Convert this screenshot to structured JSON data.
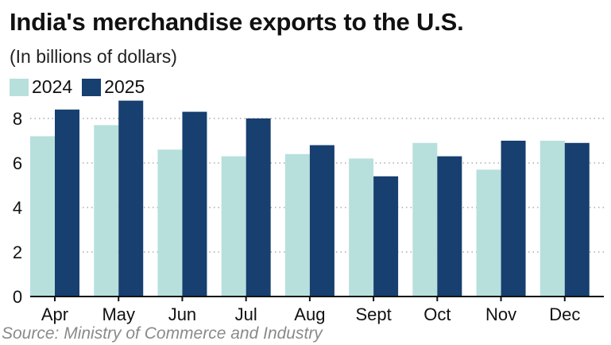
{
  "title": "India's merchandise exports to the U.S.",
  "subtitle": "(In billions of dollars)",
  "source": "Source: Ministry of Commerce and Industry",
  "chart_data": {
    "type": "bar",
    "title": "India's merchandise exports to the U.S.",
    "subtitle": "(In billions of dollars)",
    "xlabel": "",
    "ylabel": "",
    "categories": [
      "Apr",
      "May",
      "Jun",
      "Jul",
      "Aug",
      "Sept",
      "Oct",
      "Nov",
      "Dec"
    ],
    "series": [
      {
        "name": "2024",
        "color": "#b7e0dd",
        "values": [
          7.2,
          7.7,
          6.6,
          6.3,
          6.4,
          6.2,
          6.9,
          5.7,
          7.0
        ]
      },
      {
        "name": "2025",
        "color": "#173f6f",
        "values": [
          8.4,
          8.8,
          8.3,
          8.0,
          6.8,
          5.4,
          6.3,
          7.0,
          6.9
        ]
      }
    ],
    "ylim": [
      0,
      9
    ],
    "yticks": [
      0,
      2,
      4,
      6,
      8
    ],
    "grid": true,
    "legend": "top-left",
    "source": "Source: Ministry of Commerce and Industry"
  }
}
